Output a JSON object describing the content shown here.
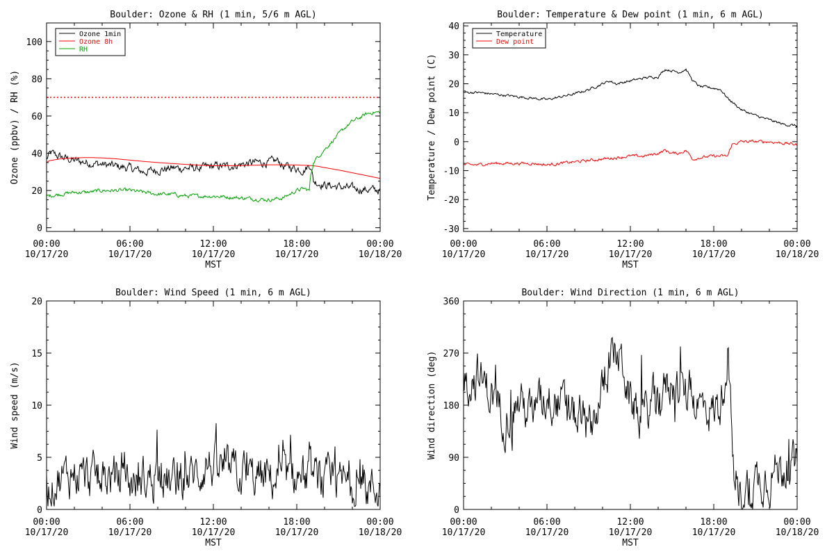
{
  "chart_data": [
    {
      "type": "line",
      "title": "Boulder: Ozone & RH (1 min, 5/6 m AGL)",
      "ylabel": "Ozone (ppbv) / RH (%)",
      "xlabel": "MST",
      "xlim": [
        0,
        24
      ],
      "ylim": [
        -2,
        110
      ],
      "yticks": [
        0,
        20,
        40,
        60,
        80,
        100
      ],
      "legend": "top-left",
      "reference_line": {
        "y": 70,
        "style": "dotted",
        "color": "#ff0000"
      },
      "series": [
        {
          "name": "Ozone 1min",
          "color": "#000000",
          "noise": 1.8,
          "x": [
            0,
            0.3,
            1,
            2,
            3,
            4,
            5,
            6,
            7,
            8,
            9,
            10,
            11,
            12,
            13,
            14,
            15,
            16,
            16.7,
            17,
            18,
            18.5,
            19,
            19.2,
            20,
            21,
            22,
            23,
            24
          ],
          "y": [
            37,
            40,
            38,
            36,
            35,
            34,
            33,
            32,
            30,
            31,
            32,
            32,
            32,
            33,
            33,
            34,
            35,
            35,
            36,
            33,
            32,
            31,
            34,
            25,
            23,
            22,
            21,
            20.5,
            20
          ]
        },
        {
          "name": "Ozone 8h",
          "color": "#ff0000",
          "noise": 0,
          "x": [
            0,
            0.2,
            1,
            2,
            3,
            4,
            5,
            6,
            7,
            8,
            9,
            10,
            11,
            12,
            13,
            14,
            15,
            16,
            17,
            18,
            19,
            19.5,
            20,
            21,
            22,
            23,
            24
          ],
          "y": [
            35,
            36,
            37,
            37.5,
            37.7,
            37.5,
            37,
            36.3,
            35.6,
            35,
            34.5,
            34,
            33.6,
            33.3,
            33.3,
            33.4,
            33.6,
            33.8,
            33.8,
            33.7,
            33.4,
            33,
            32.3,
            31,
            29.5,
            28,
            26.5
          ]
        },
        {
          "name": "RH",
          "color": "#00a000",
          "noise": 0.8,
          "x": [
            0,
            1,
            2,
            3,
            4,
            5,
            6,
            7,
            8,
            9,
            10,
            11,
            12,
            13,
            14,
            15,
            16,
            17,
            17.5,
            18,
            18.5,
            18.9,
            19,
            19.2,
            19.5,
            20,
            20.5,
            21,
            21.5,
            22,
            22.5,
            23,
            23.5,
            24
          ],
          "y": [
            17,
            18,
            19,
            19,
            20,
            20,
            20,
            19,
            18,
            18,
            17,
            17,
            17,
            16.5,
            16,
            15.5,
            15,
            16,
            18,
            20,
            21,
            20,
            28,
            35,
            38,
            42,
            46,
            50,
            54,
            57,
            59,
            61,
            62,
            62
          ]
        }
      ]
    },
    {
      "type": "line",
      "title": "Boulder: Temperature & Dew point (1 min, 6 m AGL)",
      "ylabel": "Temperature / Dew point (C)",
      "xlabel": "MST",
      "xlim": [
        0,
        24
      ],
      "ylim": [
        -31,
        41
      ],
      "yticks": [
        -30,
        -20,
        -10,
        0,
        10,
        20,
        30,
        40
      ],
      "legend": "top-left",
      "series": [
        {
          "name": "Temperature",
          "color": "#000000",
          "noise": 0.35,
          "x": [
            0,
            1,
            2,
            3,
            4,
            5,
            6,
            7,
            8,
            9,
            10,
            10.5,
            11,
            12,
            13,
            14,
            14.5,
            15,
            15.5,
            16,
            16.5,
            17,
            18,
            18.5,
            19,
            19.5,
            20,
            21,
            22,
            23,
            24
          ],
          "y": [
            17,
            17,
            16.5,
            16,
            15.5,
            15,
            14.5,
            15.5,
            16.5,
            18,
            20,
            21,
            20,
            21,
            22,
            22.5,
            25,
            24.5,
            24,
            25,
            21,
            19,
            18.5,
            18,
            15,
            13,
            11,
            9,
            7.5,
            6,
            5.5
          ]
        },
        {
          "name": "Dew point",
          "color": "#ff0000",
          "noise": 0.4,
          "x": [
            0,
            1,
            2,
            3,
            4,
            5,
            6,
            7,
            8,
            9,
            10,
            11,
            12,
            13,
            14,
            14.5,
            15,
            15.5,
            16,
            16.5,
            17,
            18,
            18.5,
            19,
            19.3,
            20,
            21,
            22,
            23,
            24
          ],
          "y": [
            -8,
            -8,
            -7.5,
            -7.5,
            -7.5,
            -7.5,
            -8,
            -7.5,
            -7,
            -6.5,
            -6,
            -5.5,
            -5,
            -5,
            -4,
            -3,
            -4,
            -4,
            -3,
            -6,
            -5.5,
            -5,
            -5,
            -5,
            -1,
            0,
            0,
            0,
            -0.5,
            -1
          ]
        }
      ]
    },
    {
      "type": "line",
      "title": "Boulder: Wind Speed (1 min, 6 m AGL)",
      "ylabel": "Wind speed (m/s)",
      "xlabel": "MST",
      "xlim": [
        0,
        24
      ],
      "ylim": [
        0,
        20
      ],
      "yticks": [
        0,
        5,
        10,
        15,
        20
      ],
      "series": [
        {
          "name": "",
          "color": "#000000",
          "noise": 1.6,
          "x": [
            0,
            1,
            2,
            3,
            4,
            5,
            6,
            7,
            8,
            9,
            10,
            11,
            11.5,
            12,
            13,
            14,
            15,
            16,
            17,
            18,
            19,
            20,
            21,
            22,
            23,
            24
          ],
          "y": [
            2,
            3,
            3.5,
            3,
            3,
            3,
            2.5,
            3,
            3,
            2.5,
            3,
            3.5,
            4.5,
            4,
            3.5,
            3.5,
            3,
            3,
            3,
            3,
            3,
            2.5,
            2.5,
            2.5,
            2,
            2
          ]
        }
      ]
    },
    {
      "type": "line",
      "title": "Boulder: Wind Direction (1 min, 6 m AGL)",
      "ylabel": "Wind direction (deg)",
      "xlabel": "MST",
      "xlim": [
        0,
        24
      ],
      "ylim": [
        0,
        360
      ],
      "yticks": [
        0,
        90,
        180,
        270,
        360
      ],
      "series": [
        {
          "name": "",
          "color": "#000000",
          "noise": 30,
          "x": [
            0,
            1,
            2,
            3,
            4,
            5,
            5.5,
            6,
            7,
            8,
            9,
            10,
            10.5,
            11,
            11.5,
            12,
            13,
            14,
            15,
            16,
            17,
            18,
            18.5,
            19,
            19.5,
            20,
            21,
            22,
            23,
            24
          ],
          "y": [
            220,
            230,
            200,
            160,
            190,
            160,
            180,
            200,
            180,
            160,
            140,
            200,
            260,
            270,
            250,
            180,
            160,
            200,
            220,
            200,
            180,
            170,
            180,
            280,
            20,
            30,
            50,
            60,
            75,
            70
          ]
        }
      ]
    }
  ],
  "x_axis": {
    "ticks": [
      {
        "time": "00:00",
        "date": "10/17/20"
      },
      {
        "time": "06:00",
        "date": "10/17/20"
      },
      {
        "time": "12:00",
        "date": "10/17/20"
      },
      {
        "time": "18:00",
        "date": "10/17/20"
      },
      {
        "time": "00:00",
        "date": "10/18/20"
      }
    ]
  }
}
